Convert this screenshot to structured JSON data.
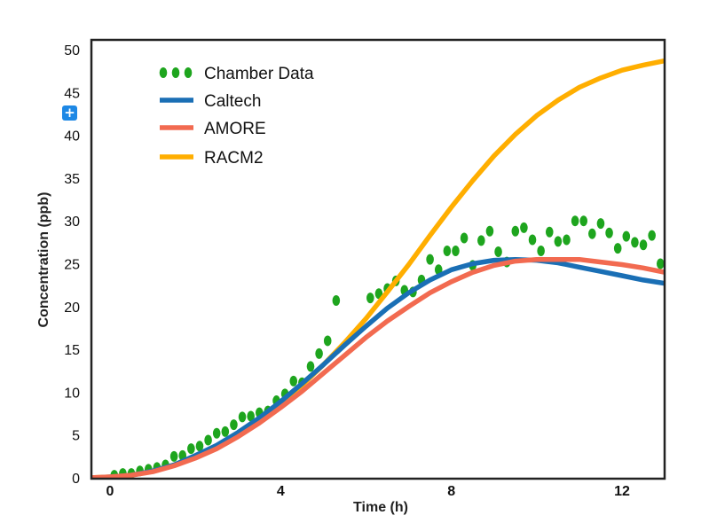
{
  "chart_data": {
    "type": "line",
    "xlabel": "Time (h)",
    "ylabel": "Concentration (ppb)",
    "xlim": [
      -0.5,
      13
    ],
    "ylim": [
      0,
      50
    ],
    "xticks": [
      0,
      4,
      8,
      12
    ],
    "yticks": [
      0,
      5,
      10,
      15,
      20,
      25,
      30,
      35,
      40,
      45,
      50
    ],
    "legend_position": "top-left",
    "grid": false,
    "series": [
      {
        "name": "Chamber Data",
        "kind": "scatter",
        "color": "#1ea51e",
        "x": [
          0.1,
          0.3,
          0.5,
          0.7,
          0.9,
          1.1,
          1.3,
          1.5,
          1.7,
          1.9,
          2.1,
          2.3,
          2.5,
          2.7,
          2.9,
          3.1,
          3.3,
          3.5,
          3.7,
          3.9,
          4.1,
          4.3,
          4.5,
          4.7,
          4.9,
          5.1,
          5.3,
          6.1,
          6.3,
          6.5,
          6.7,
          6.9,
          7.1,
          7.3,
          7.5,
          7.7,
          7.9,
          8.1,
          8.3,
          8.5,
          8.7,
          8.9,
          9.1,
          9.3,
          9.5,
          9.7,
          9.9,
          10.1,
          10.3,
          10.5,
          10.7,
          10.9,
          11.1,
          11.3,
          11.5,
          11.7,
          11.9,
          12.1,
          12.3,
          12.5,
          12.7,
          12.9
        ],
        "y": [
          0.3,
          0.5,
          0.5,
          0.8,
          1.0,
          1.2,
          1.5,
          2.5,
          2.6,
          3.4,
          3.7,
          4.4,
          5.2,
          5.4,
          6.2,
          7.1,
          7.2,
          7.6,
          7.8,
          9.0,
          9.8,
          11.3,
          11.1,
          13.0,
          14.5,
          16.0,
          20.7,
          21.0,
          21.5,
          22.1,
          23.0,
          21.9,
          21.7,
          23.1,
          25.5,
          24.3,
          26.5,
          26.5,
          28.0,
          24.8,
          27.7,
          28.8,
          26.4,
          25.2,
          28.8,
          29.2,
          27.8,
          26.5,
          28.7,
          27.6,
          27.8,
          30.0,
          30.0,
          28.5,
          29.7,
          28.6,
          26.8,
          28.2,
          27.5,
          27.2,
          28.3,
          25.0
        ]
      },
      {
        "name": "Caltech",
        "kind": "line",
        "color": "#1a6fb5",
        "x": [
          -0.3,
          0,
          0.5,
          1,
          1.5,
          2,
          2.5,
          3,
          3.5,
          4,
          4.5,
          5,
          5.5,
          6,
          6.5,
          7,
          7.5,
          8,
          8.5,
          9,
          9.5,
          10,
          10.5,
          11,
          11.5,
          12,
          12.5,
          13
        ],
        "y": [
          0.0,
          0.1,
          0.3,
          0.8,
          1.5,
          2.6,
          3.8,
          5.3,
          7.0,
          8.9,
          11.0,
          13.2,
          15.5,
          17.7,
          19.8,
          21.6,
          23.1,
          24.3,
          25.0,
          25.4,
          25.5,
          25.4,
          25.1,
          24.6,
          24.1,
          23.6,
          23.1,
          22.7
        ]
      },
      {
        "name": "AMORE",
        "kind": "line",
        "color": "#f26a50",
        "x": [
          -0.5,
          0,
          0.5,
          1,
          1.5,
          2,
          2.5,
          3,
          3.5,
          4,
          4.5,
          5,
          5.5,
          6,
          6.5,
          7,
          7.5,
          8,
          8.5,
          9,
          9.5,
          10,
          10.5,
          11,
          11.5,
          12,
          12.5,
          13
        ],
        "y": [
          0.0,
          0.1,
          0.3,
          0.7,
          1.4,
          2.3,
          3.4,
          4.8,
          6.4,
          8.2,
          10.1,
          12.2,
          14.3,
          16.4,
          18.3,
          20.0,
          21.6,
          22.9,
          24.0,
          24.8,
          25.3,
          25.5,
          25.5,
          25.5,
          25.2,
          24.9,
          24.5,
          24.0
        ]
      },
      {
        "name": "RACM2",
        "kind": "line",
        "color": "#ffae00",
        "x": [
          -0.5,
          0,
          0.5,
          1,
          1.5,
          2,
          2.5,
          3,
          3.5,
          4,
          4.5,
          5,
          5.5,
          6,
          6.5,
          7,
          7.5,
          8,
          8.5,
          9,
          9.5,
          10,
          10.5,
          11,
          11.5,
          12,
          12.5,
          13
        ],
        "y": [
          0.0,
          0.1,
          0.3,
          0.8,
          1.5,
          2.5,
          3.7,
          5.2,
          6.8,
          8.6,
          10.8,
          13.2,
          15.8,
          18.6,
          21.7,
          24.9,
          28.3,
          31.6,
          34.7,
          37.6,
          40.1,
          42.3,
          44.1,
          45.6,
          46.7,
          47.6,
          48.2,
          48.7
        ]
      }
    ]
  }
}
